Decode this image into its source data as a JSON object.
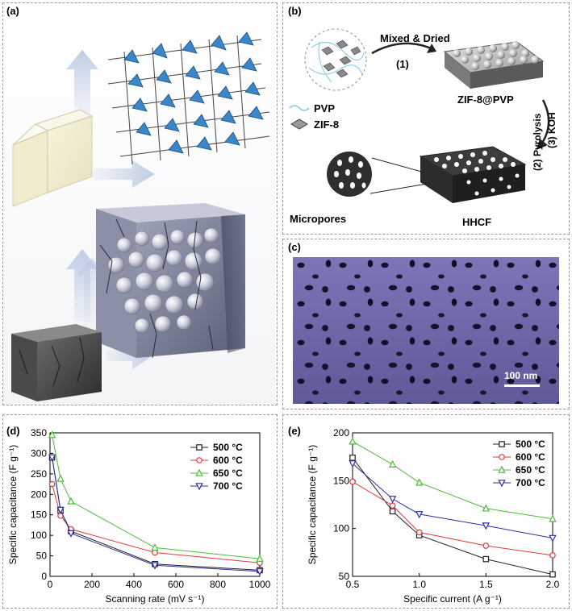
{
  "panels": {
    "a": {
      "label": "(a)"
    },
    "b": {
      "label": "(b)",
      "step1": "Mixed & Dried",
      "step1_num": "(1)",
      "legend_pvp": "PVP",
      "legend_zif": "ZIF-8",
      "product1": "ZIF-8@PVP",
      "step2": "(2) Pyrolysis",
      "step3": "(3) KOH",
      "micropores": "Micropores",
      "product2": "HHCF"
    },
    "c": {
      "label": "(c)",
      "scalebar": "100 nm"
    },
    "d": {
      "label": "(d)"
    },
    "e": {
      "label": "(e)"
    }
  },
  "chart_data": [
    {
      "type": "line",
      "panel": "d",
      "xlabel": "Scanning rate (mV s⁻¹)",
      "ylabel": "Specific capacitance (F g⁻¹)",
      "xlim": [
        0,
        1000
      ],
      "ylim": [
        0,
        350
      ],
      "xticks": [
        "0",
        "200",
        "400",
        "600",
        "800",
        "1000"
      ],
      "yticks": [
        "0",
        "50",
        "100",
        "150",
        "200",
        "250",
        "300",
        "350"
      ],
      "legend_position": "top-right",
      "x": [
        10,
        50,
        100,
        500,
        1000
      ],
      "series": [
        {
          "name": "500 °C",
          "color": "#222222",
          "marker": "square",
          "values": [
            290,
            160,
            110,
            30,
            15
          ]
        },
        {
          "name": "600 °C",
          "color": "#e0393e",
          "marker": "circle",
          "values": [
            225,
            148,
            115,
            58,
            33
          ]
        },
        {
          "name": "650 °C",
          "color": "#4dbb3a",
          "marker": "triangle-up",
          "values": [
            345,
            238,
            183,
            70,
            43
          ]
        },
        {
          "name": "700 °C",
          "color": "#2b2f9e",
          "marker": "triangle-down",
          "values": [
            290,
            162,
            105,
            27,
            12
          ]
        }
      ]
    },
    {
      "type": "line",
      "panel": "e",
      "xlabel": "Specific current (A g⁻¹)",
      "ylabel": "Specific capacitance (F g⁻¹)",
      "xlim": [
        0.5,
        2.0
      ],
      "ylim": [
        50,
        200
      ],
      "xticks": [
        "0.5",
        "1.0",
        "1.5",
        "2.0"
      ],
      "yticks": [
        "50",
        "100",
        "150",
        "200"
      ],
      "legend_position": "top-right",
      "x": [
        0.5,
        0.8,
        1.0,
        1.5,
        2.0
      ],
      "series": [
        {
          "name": "500 °C",
          "color": "#222222",
          "marker": "square",
          "values": [
            174,
            118,
            93,
            68,
            52
          ]
        },
        {
          "name": "600 °C",
          "color": "#e0393e",
          "marker": "circle",
          "values": [
            149,
            124,
            96,
            82,
            72
          ]
        },
        {
          "name": "650 °C",
          "color": "#4dbb3a",
          "marker": "triangle-up",
          "values": [
            191,
            167,
            148,
            121,
            110
          ]
        },
        {
          "name": "700 °C",
          "color": "#2b2f9e",
          "marker": "triangle-down",
          "values": [
            168,
            131,
            115,
            103,
            90
          ]
        }
      ]
    }
  ]
}
